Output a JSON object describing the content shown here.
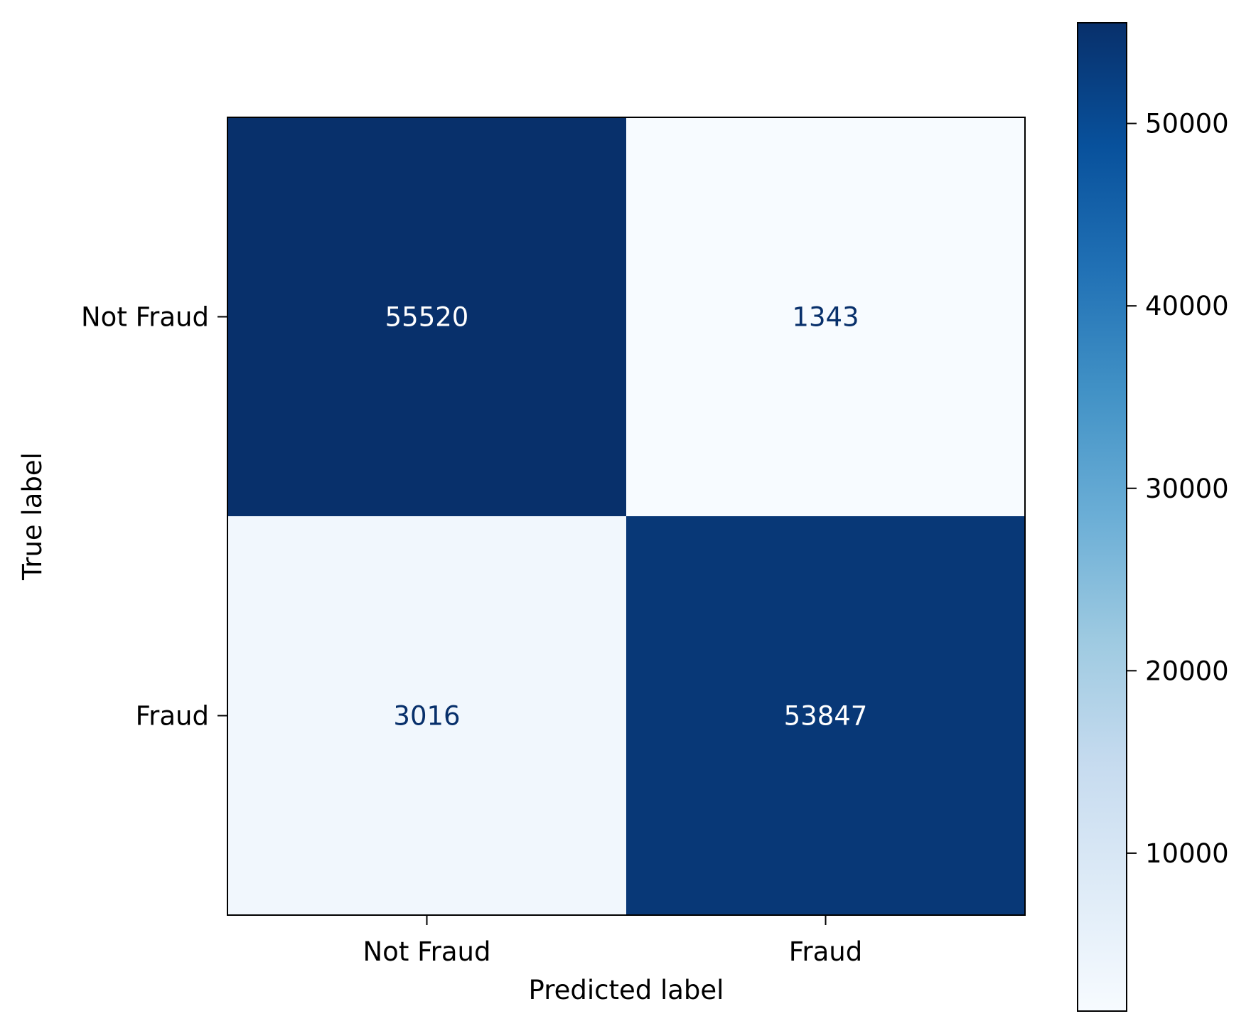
{
  "chart_data": {
    "type": "heatmap",
    "title": "",
    "xlabel": "Predicted label",
    "ylabel": "True label",
    "x_categories": [
      "Not Fraud",
      "Fraud"
    ],
    "y_categories": [
      "Not Fraud",
      "Fraud"
    ],
    "matrix": [
      [
        55520,
        1343
      ],
      [
        3016,
        53847
      ]
    ],
    "colormap": "Blues",
    "colormap_stops": [
      "#f7fbff",
      "#deebf7",
      "#c6dbef",
      "#9ecae1",
      "#6baed6",
      "#4292c6",
      "#2171b5",
      "#08519c",
      "#08306b"
    ],
    "value_range": [
      1343,
      55520
    ],
    "text_color_on_dark": "#ffffff",
    "text_color_on_light": "#08306b",
    "colorbar": {
      "ticks": [
        10000,
        20000,
        30000,
        40000,
        50000
      ],
      "tick_labels": [
        "10000",
        "20000",
        "30000",
        "40000",
        "50000"
      ]
    },
    "grid": false,
    "legend": "none"
  }
}
